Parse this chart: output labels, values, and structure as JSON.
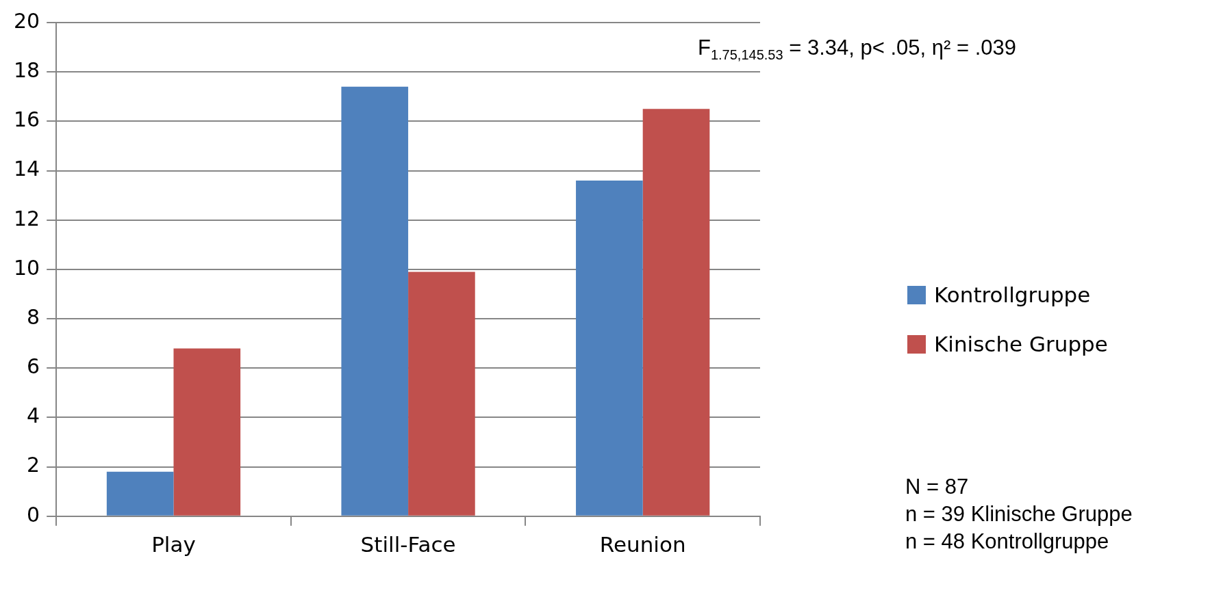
{
  "chart_data": {
    "type": "bar",
    "categories": [
      "Play",
      "Still-Face",
      "Reunion"
    ],
    "series": [
      {
        "name": "Kontrollgruppe",
        "color": "#4f81bd",
        "values": [
          1.8,
          17.4,
          13.6
        ]
      },
      {
        "name": "Kinische Gruppe",
        "color": "#c0504d",
        "values": [
          6.8,
          9.9,
          16.5
        ]
      }
    ],
    "ylim": [
      0,
      20
    ],
    "yticks": [
      0,
      2,
      4,
      6,
      8,
      10,
      12,
      14,
      16,
      18,
      20
    ],
    "grid": "y",
    "legend": "right",
    "annotations": [
      "F$_{1.75,145.53}$ = 3.34, p< .05, η² = .039",
      "N = 87",
      "n = 39 Klinische Gruppe",
      "n = 48 Kontrollgruppe"
    ]
  }
}
